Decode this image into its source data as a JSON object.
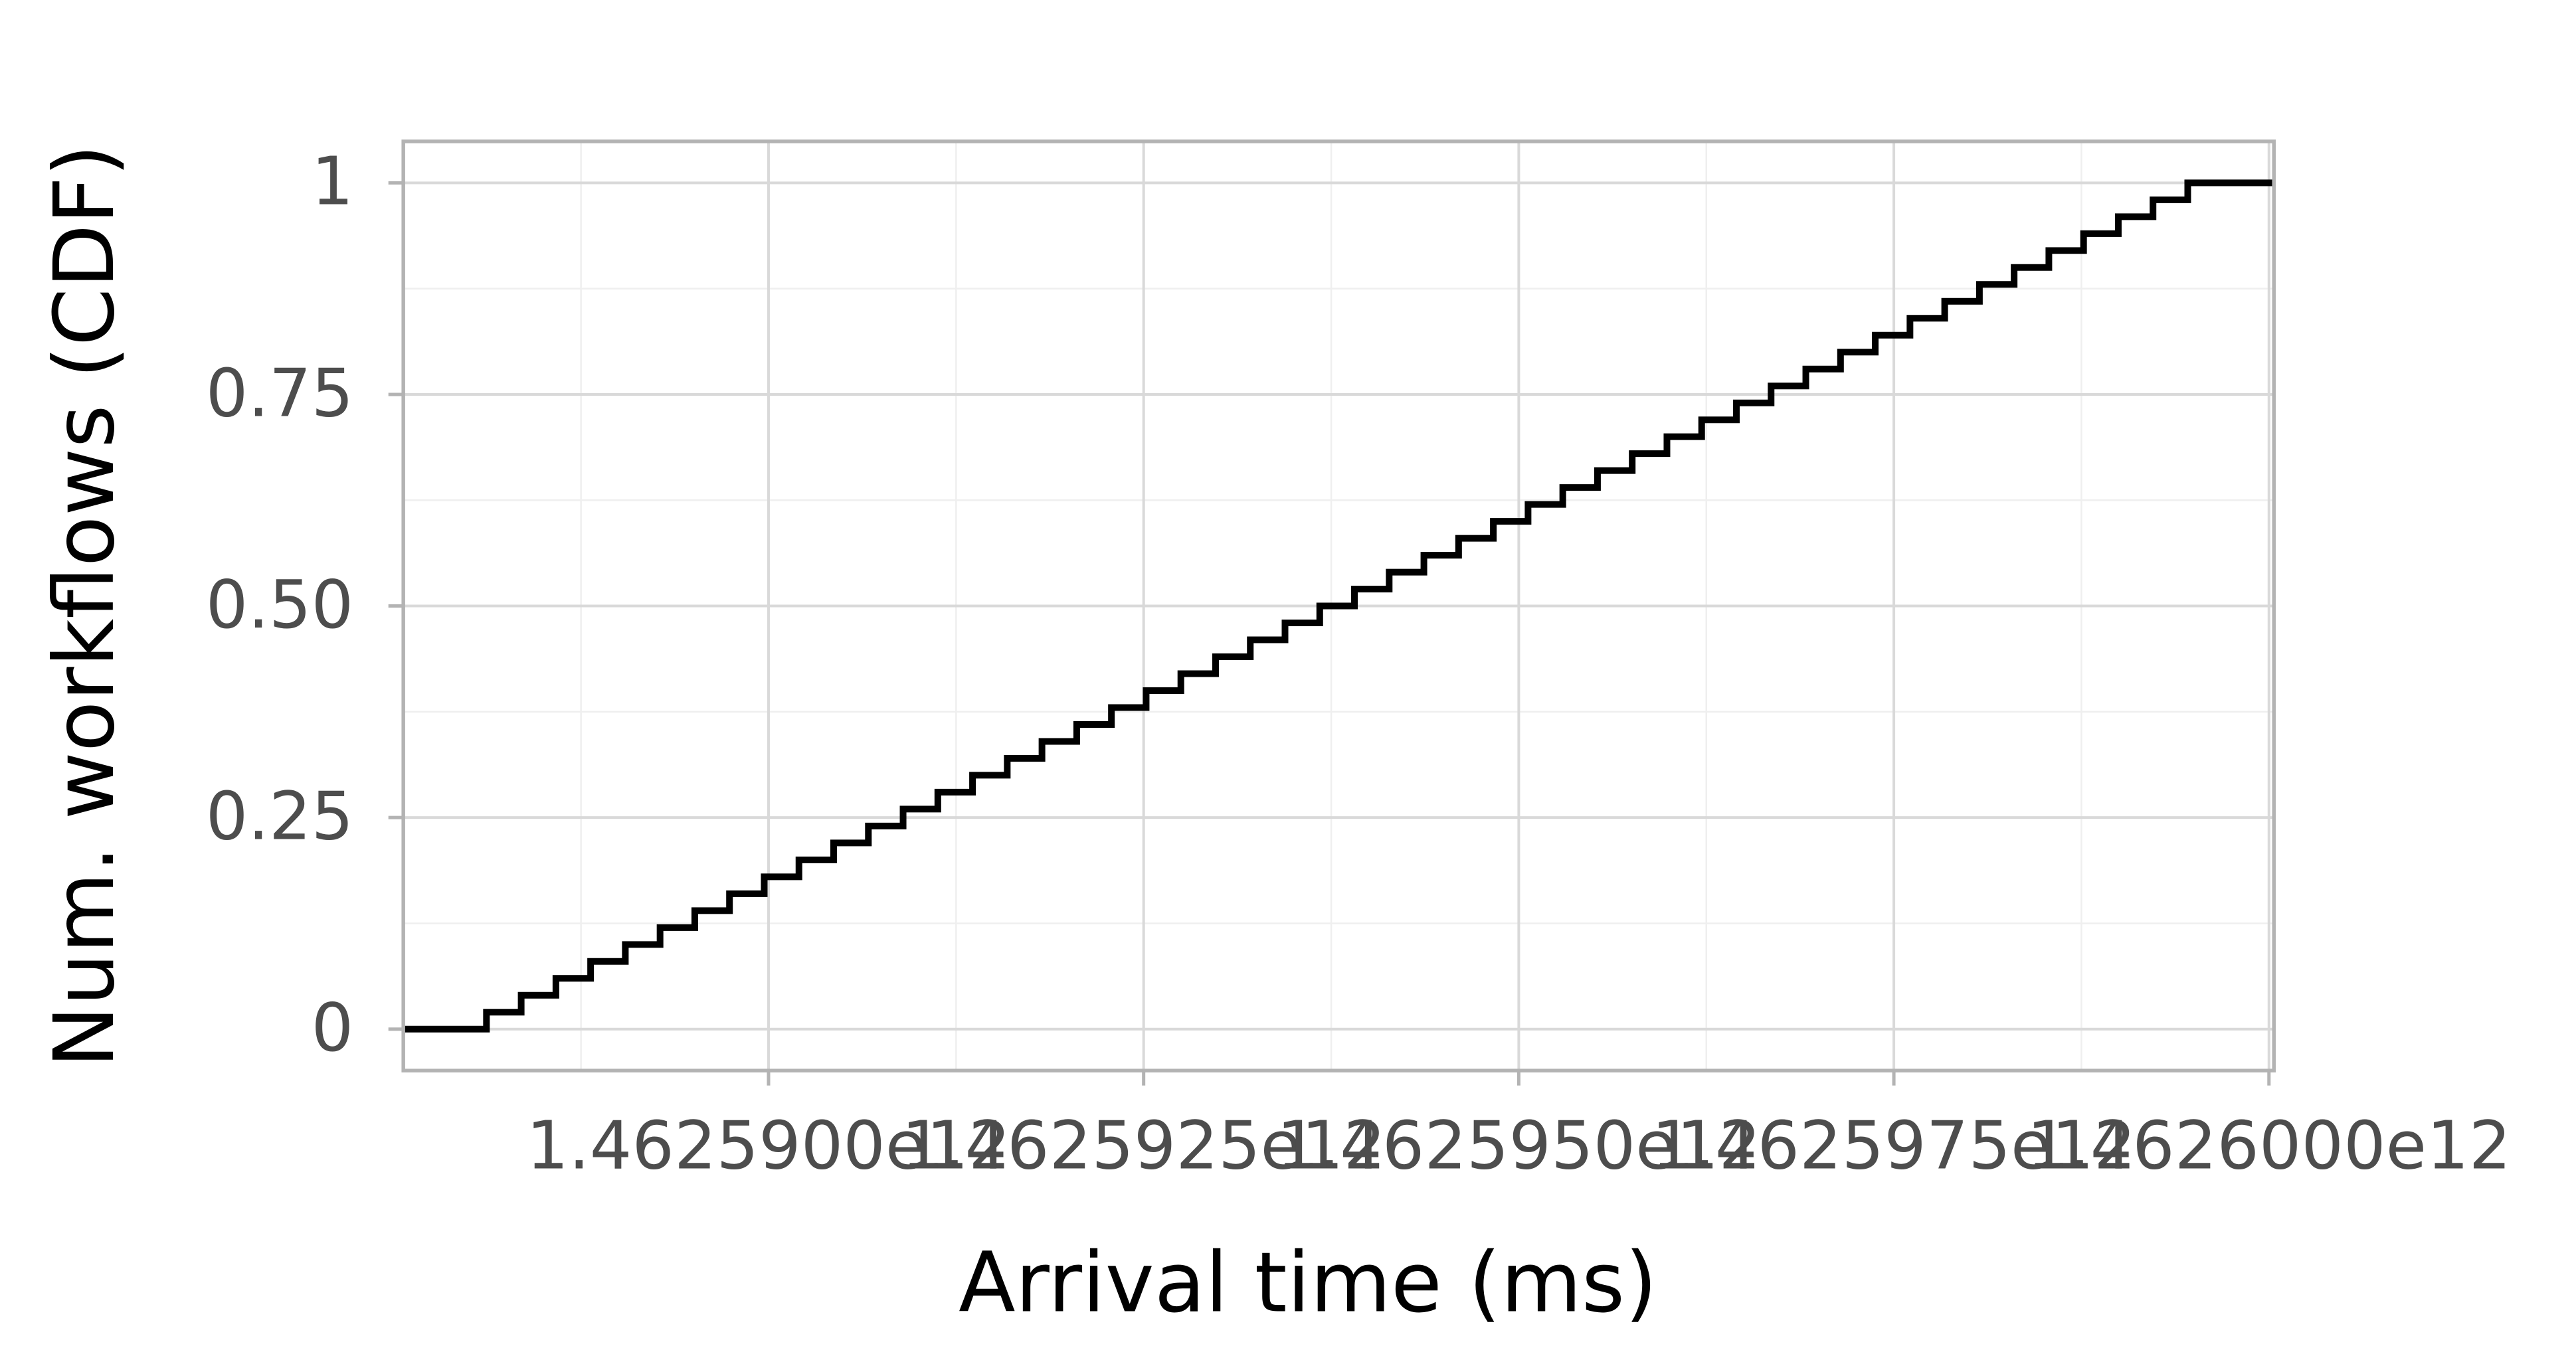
{
  "chart_data": {
    "type": "step",
    "x_label": "Arrival time (ms)",
    "y_label": "Num. workflows (CDF)",
    "x": [
      1462587570000,
      1462588120000,
      1462588351400,
      1462588582800,
      1462588814200,
      1462589045600,
      1462589277000,
      1462589508400,
      1462589739800,
      1462589971200,
      1462590202600,
      1462590434000,
      1462590665400,
      1462590896800,
      1462591128200,
      1462591359600,
      1462591591000,
      1462591822400,
      1462592053800,
      1462592285200,
      1462592516600,
      1462592748000,
      1462592979400,
      1462593210800,
      1462593442200,
      1462593673600,
      1462593905000,
      1462594136400,
      1462594367800,
      1462594599200,
      1462594830600,
      1462595062000,
      1462595293400,
      1462595524800,
      1462595756200,
      1462595987600,
      1462596219000,
      1462596450400,
      1462596681800,
      1462596913200,
      1462597144600,
      1462597376000,
      1462597607400,
      1462597838800,
      1462598070200,
      1462598301600,
      1462598533000,
      1462598764400,
      1462598995800,
      1462599227200,
      1462599458600,
      1462600030000
    ],
    "values": [
      0,
      0.02,
      0.04,
      0.06,
      0.08,
      0.1,
      0.12,
      0.14,
      0.16,
      0.18,
      0.2,
      0.22,
      0.24,
      0.26,
      0.28,
      0.3,
      0.32,
      0.34,
      0.36,
      0.38,
      0.4,
      0.42,
      0.44,
      0.46,
      0.48,
      0.5,
      0.52,
      0.54,
      0.56,
      0.58,
      0.6,
      0.62,
      0.64,
      0.66,
      0.68,
      0.7,
      0.72,
      0.74,
      0.76,
      0.78,
      0.8,
      0.82,
      0.84,
      0.86,
      0.88,
      0.9,
      0.92,
      0.94,
      0.96,
      0.98,
      1,
      1
    ],
    "color": "#000000",
    "xlim": [
      1462587566000,
      1462600033000
    ],
    "ylim": [
      -0.049,
      1.049
    ],
    "xticks": [
      {
        "value": 1462590000000,
        "label": "1.4625900e12"
      },
      {
        "value": 1462592500000,
        "label": "1.4625925e12"
      },
      {
        "value": 1462595000000,
        "label": "1.4625950e12"
      },
      {
        "value": 1462597500000,
        "label": "1.4625975e12"
      },
      {
        "value": 1462600000000,
        "label": "1.4626000e12"
      }
    ],
    "yticks": [
      0,
      0.25,
      {
        "value": 0.5,
        "label": "0.50"
      },
      0.75,
      1
    ],
    "grid": true
  }
}
